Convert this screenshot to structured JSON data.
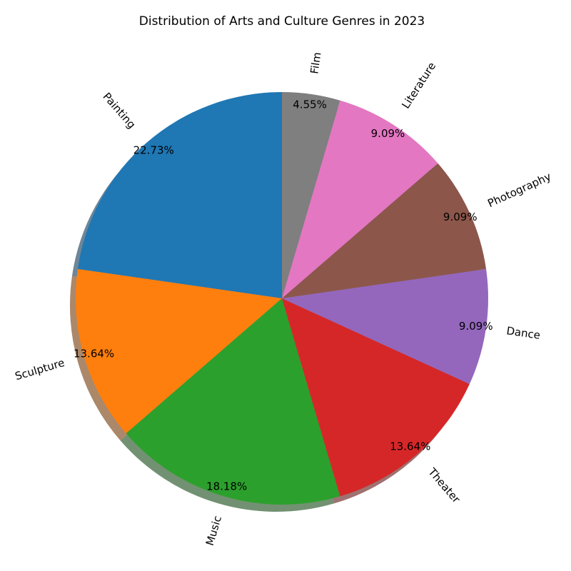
{
  "chart_data": {
    "type": "pie",
    "title": "Distribution of Arts and Culture Genres in 2023",
    "start_angle_deg": 90,
    "direction": "counterclockwise",
    "shadow": true,
    "rotated_labels": true,
    "slices": [
      {
        "label": "Painting",
        "value": 22.73,
        "pct_text": "22.73%",
        "color": "#1f77b4"
      },
      {
        "label": "Sculpture",
        "value": 13.64,
        "pct_text": "13.64%",
        "color": "#ff7f0e"
      },
      {
        "label": "Music",
        "value": 18.18,
        "pct_text": "18.18%",
        "color": "#2ca02c"
      },
      {
        "label": "Theater",
        "value": 13.64,
        "pct_text": "13.64%",
        "color": "#d62728"
      },
      {
        "label": "Dance",
        "value": 9.09,
        "pct_text": "9.09%",
        "color": "#9467bd"
      },
      {
        "label": "Photography",
        "value": 9.09,
        "pct_text": "9.09%",
        "color": "#8c564b"
      },
      {
        "label": "Literature",
        "value": 9.09,
        "pct_text": "9.09%",
        "color": "#e377c2"
      },
      {
        "label": "Film",
        "value": 4.55,
        "pct_text": "4.55%",
        "color": "#7f7f7f"
      }
    ]
  }
}
